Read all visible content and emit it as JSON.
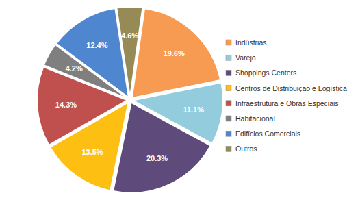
{
  "chart_data": {
    "type": "pie",
    "categories": [
      "Indústrias",
      "Varejo",
      "Shoppings Centers",
      "Centros de Distribuição e Logística",
      "Infraestrutura e Obras Especiais",
      "Habitacional",
      "Edifícios Comerciais",
      "Outros"
    ],
    "values": [
      19.6,
      11.1,
      20.3,
      13.5,
      14.3,
      4.2,
      12.4,
      4.6
    ],
    "value_labels": [
      "19.6%",
      "11.1%",
      "20.3%",
      "13.5%",
      "14.3%",
      "4.2%",
      "12.4%",
      "4.6%"
    ],
    "colors": [
      "#f79b52",
      "#93cddd",
      "#5f4a7c",
      "#fdbf12",
      "#c0504d",
      "#7f7f7f",
      "#4f86d0",
      "#968b56"
    ],
    "data_labels": true,
    "legend": "right"
  }
}
